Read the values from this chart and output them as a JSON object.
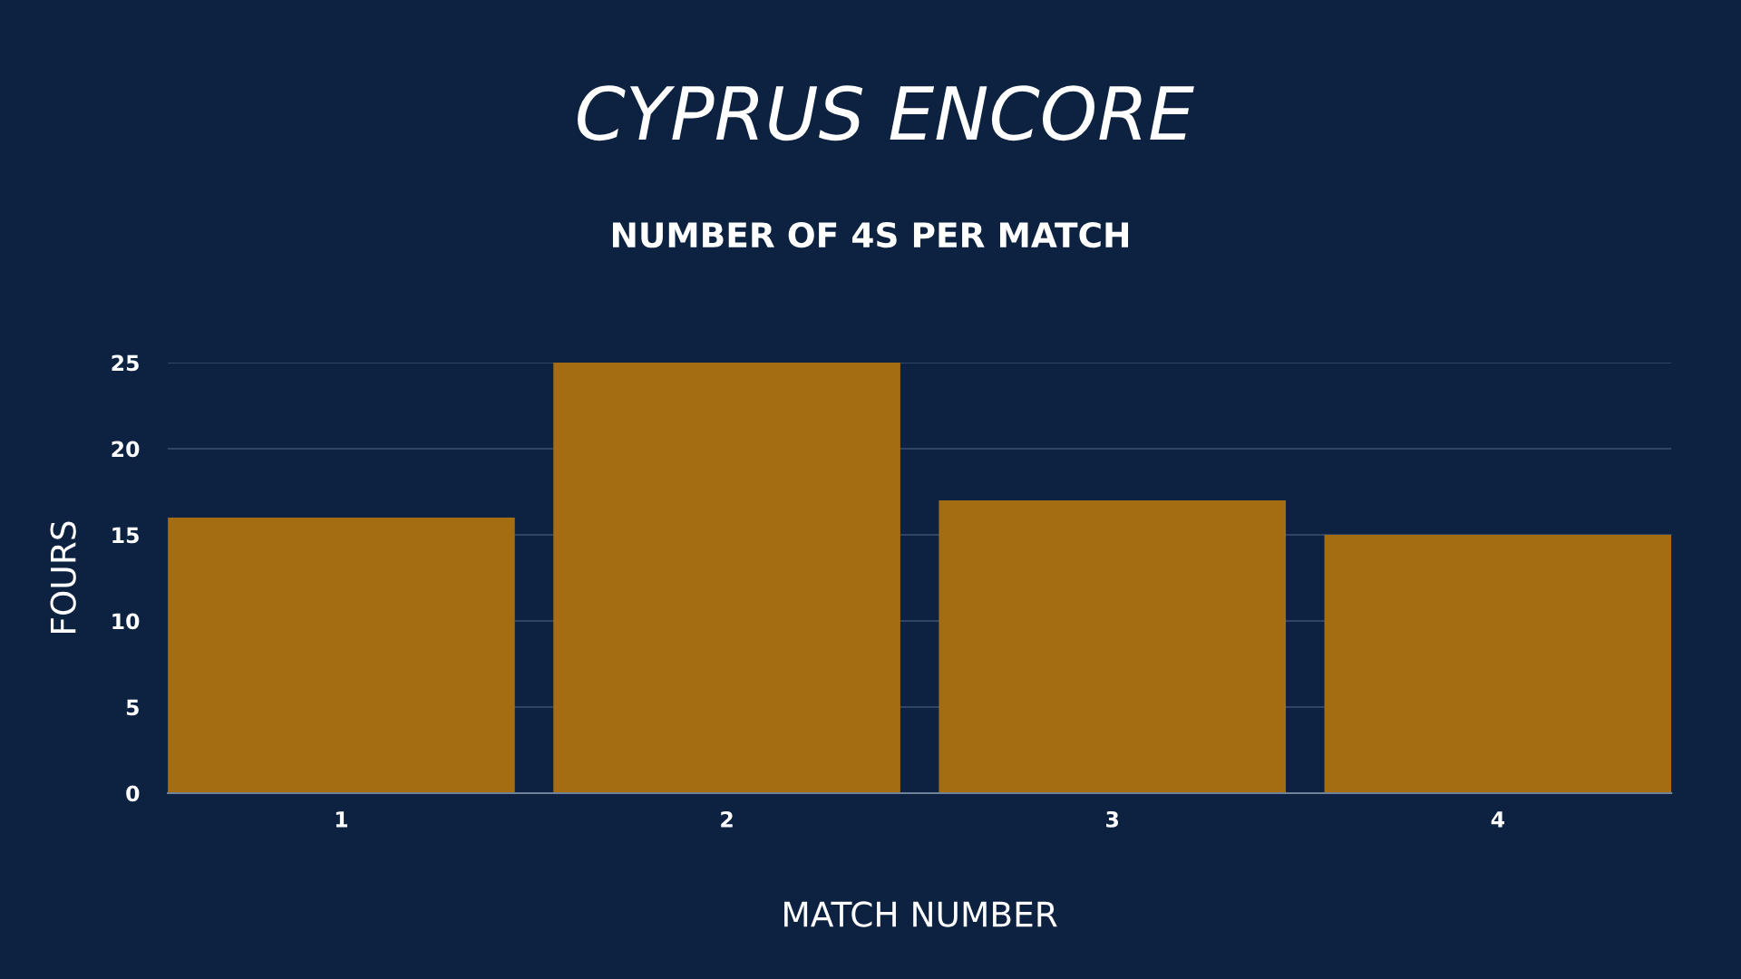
{
  "chart_data": {
    "type": "bar",
    "title": "CYPRUS ENCORE",
    "subtitle": "NUMBER OF 4S PER MATCH",
    "xlabel": "MATCH NUMBER",
    "ylabel": "FOURS",
    "categories": [
      "1",
      "2",
      "3",
      "4"
    ],
    "values": [
      16,
      25,
      17,
      15
    ],
    "color": "#a56d12",
    "ylim": [
      0,
      25
    ],
    "yticks": [
      0,
      5,
      10,
      15,
      20,
      25
    ],
    "grid": "y"
  }
}
